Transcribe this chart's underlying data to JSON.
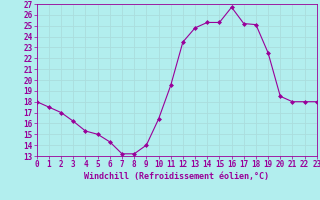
{
  "xlabel": "Windchill (Refroidissement éolien,°C)",
  "x": [
    0,
    1,
    2,
    3,
    4,
    5,
    6,
    7,
    8,
    9,
    10,
    11,
    12,
    13,
    14,
    15,
    16,
    17,
    18,
    19,
    20,
    21,
    22,
    23
  ],
  "y": [
    18.0,
    17.5,
    17.0,
    16.2,
    15.3,
    15.0,
    14.3,
    13.2,
    13.2,
    14.0,
    16.4,
    19.5,
    23.5,
    24.8,
    25.3,
    25.3,
    26.7,
    25.2,
    25.1,
    22.5,
    18.5,
    18.0,
    18.0,
    18.0
  ],
  "ylim": [
    13,
    27
  ],
  "xlim": [
    0,
    23
  ],
  "yticks": [
    13,
    14,
    15,
    16,
    17,
    18,
    19,
    20,
    21,
    22,
    23,
    24,
    25,
    26,
    27
  ],
  "xticks": [
    0,
    1,
    2,
    3,
    4,
    5,
    6,
    7,
    8,
    9,
    10,
    11,
    12,
    13,
    14,
    15,
    16,
    17,
    18,
    19,
    20,
    21,
    22,
    23
  ],
  "line_color": "#990099",
  "marker": "D",
  "marker_size": 2.0,
  "bg_color": "#b2eeee",
  "grid_color": "#aadddd",
  "tick_label_color": "#990099",
  "xlabel_color": "#990099",
  "spine_color": "#990099",
  "tick_color": "#990099",
  "tick_label_fontsize": 5.5,
  "xlabel_fontsize": 6.0
}
